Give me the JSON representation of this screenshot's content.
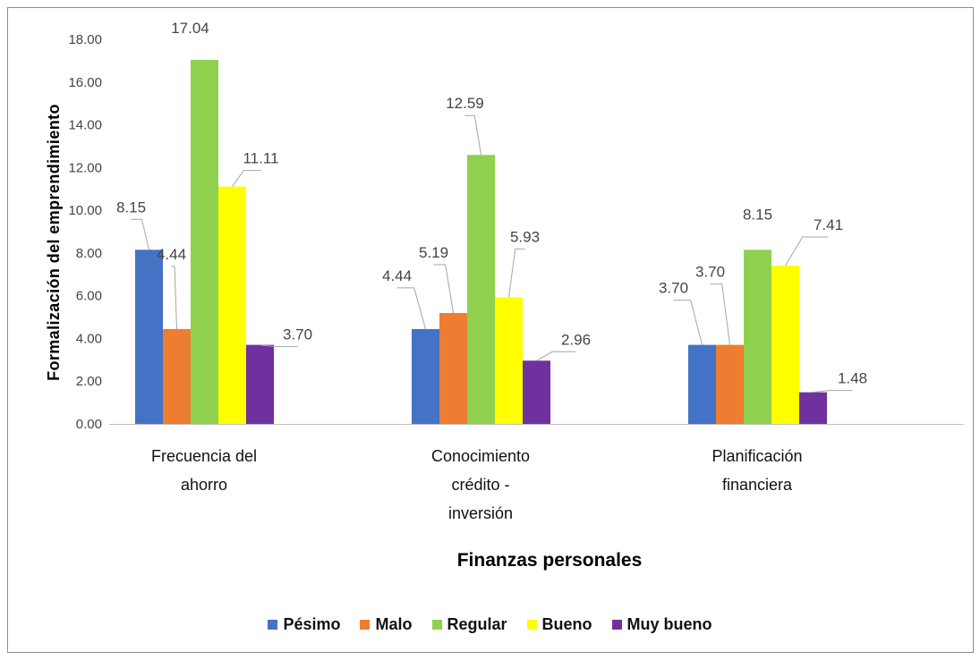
{
  "chart_data": {
    "type": "bar",
    "title": "",
    "xlabel": "Finanzas personales",
    "ylabel": "Formalización del emprendimiento",
    "ylim": [
      0,
      18
    ],
    "yticks": [
      "0.00",
      "2.00",
      "4.00",
      "6.00",
      "8.00",
      "10.00",
      "12.00",
      "14.00",
      "16.00",
      "18.00"
    ],
    "categories": [
      [
        "Frecuencia del",
        "ahorro"
      ],
      [
        "Conocimiento",
        "crédito -",
        "inversión"
      ],
      [
        "Planificación",
        "financiera"
      ]
    ],
    "series": [
      {
        "name": "Pésimo",
        "color": "#4472C4",
        "values": [
          8.15,
          4.44,
          3.7
        ],
        "labels": [
          "8.15",
          "4.44",
          "3.70"
        ]
      },
      {
        "name": "Malo",
        "color": "#ED7D31",
        "values": [
          4.44,
          5.19,
          3.7
        ],
        "labels": [
          "4.44",
          "5.19",
          "3.70"
        ]
      },
      {
        "name": "Regular",
        "color": "#8FD14F",
        "values": [
          17.04,
          12.59,
          8.15
        ],
        "labels": [
          "17.04",
          "12.59",
          "8.15"
        ]
      },
      {
        "name": "Bueno",
        "color": "#FFFF00",
        "values": [
          11.11,
          5.93,
          7.41
        ],
        "labels": [
          "11.11",
          "5.93",
          "7.41"
        ]
      },
      {
        "name": "Muy bueno",
        "color": "#7030A0",
        "values": [
          3.7,
          2.96,
          1.48
        ],
        "labels": [
          "3.70",
          "2.96",
          "1.48"
        ]
      }
    ],
    "grid": false,
    "legend_position": "bottom"
  }
}
